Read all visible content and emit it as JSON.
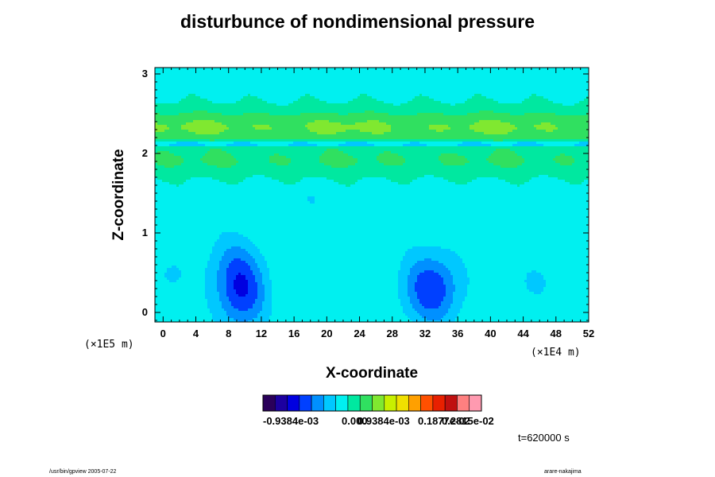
{
  "chart_data": {
    "type": "heatmap",
    "title": "disturbunce of nondimensional pressure",
    "xlabel": "X-coordinate",
    "ylabel": "Z-coordinate",
    "x_ticks": [
      "0",
      "4",
      "8",
      "12",
      "16",
      "20",
      "24",
      "28",
      "32",
      "36",
      "40",
      "44",
      "48",
      "52"
    ],
    "y_ticks": [
      "0",
      "1",
      "2",
      "3"
    ],
    "x_scale_note": "(×1E4 m)",
    "y_scale_note": "(×1E5 m)",
    "xlim": [
      -1,
      52
    ],
    "ylim": [
      -0.12,
      3.08
    ],
    "colorbar": {
      "range": [
        -0.0018,
        0.0042
      ],
      "colors": [
        "#2a005a",
        "#1c00a0",
        "#0000e0",
        "#0040ff",
        "#0090ff",
        "#00c8ff",
        "#00f0f0",
        "#00e8a0",
        "#30e060",
        "#80e830",
        "#c8f000",
        "#f0e000",
        "#ffa000",
        "#ff5000",
        "#e82000",
        "#c01010",
        "#ff8080",
        "#ff9ab0"
      ],
      "labels": [
        "-0.9384e-03",
        "0.000",
        "0.9384e-03",
        "0.1877e-02",
        "0.2815e-02"
      ]
    },
    "field": {
      "background": 0.00045,
      "bands": [
        {
          "z_center": 2.12,
          "half_width": 0.035,
          "value": -0.0004
        },
        {
          "z_center": 2.33,
          "half_width": 0.22,
          "value": 0.0013
        },
        {
          "z_center": 1.9,
          "half_width": 0.18,
          "value": 0.0009
        }
      ],
      "blobs": [
        {
          "x": 9.6,
          "z": 0.22,
          "rx": 3.0,
          "rz": 0.45,
          "value": -0.0011
        },
        {
          "x": 8.5,
          "z": 0.6,
          "rx": 3.5,
          "rz": 0.4,
          "value": -0.0005
        },
        {
          "x": 32.8,
          "z": 0.3,
          "rx": 3.5,
          "rz": 0.45,
          "value": -0.0012
        },
        {
          "x": 1.0,
          "z": 0.47,
          "rx": 1.4,
          "rz": 0.15,
          "value": -0.0004
        },
        {
          "x": 45.5,
          "z": 0.38,
          "rx": 1.6,
          "rz": 0.17,
          "value": -0.0004
        },
        {
          "x": 25.5,
          "z": 0.57,
          "rx": 1.6,
          "rz": 0.17,
          "value": -0.0002
        },
        {
          "x": 18.1,
          "z": 1.42,
          "rx": 0.6,
          "rz": 0.07,
          "value": -0.0004
        }
      ]
    },
    "time_label": "t=620000 s"
  },
  "footer": {
    "left": "/usr/bin/gpview 2005-07-22",
    "right": "arare-nakajima"
  }
}
